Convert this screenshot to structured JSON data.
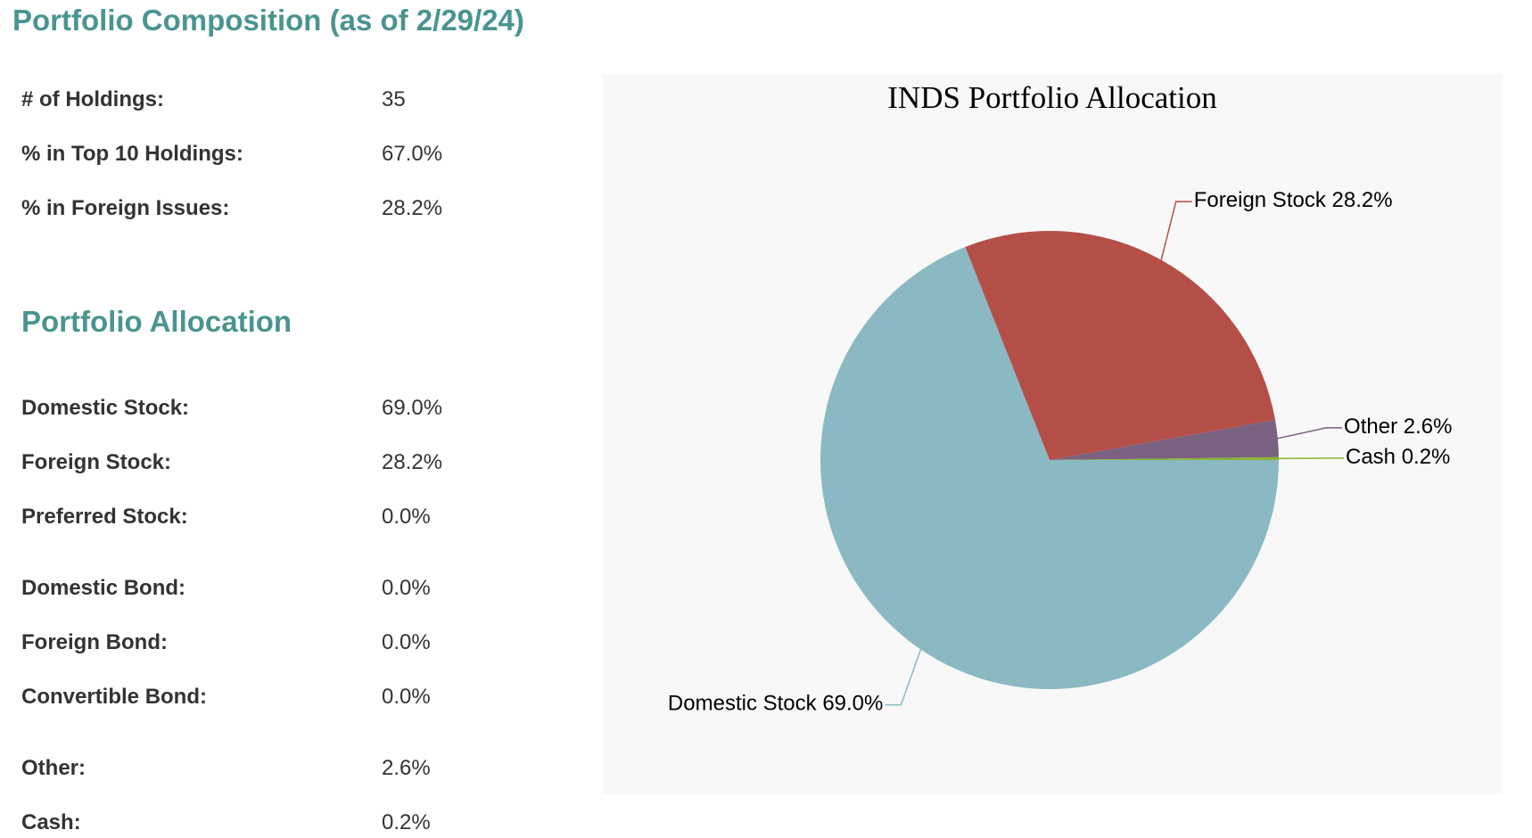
{
  "composition": {
    "title": "Portfolio Composition (as of 2/29/24)",
    "rows": [
      [
        "# of Holdings:",
        "35"
      ],
      [
        "% in Top 10 Holdings:",
        "67.0%"
      ],
      [
        "% in Foreign Issues:",
        "28.2%"
      ]
    ]
  },
  "allocation": {
    "title": "Portfolio Allocation",
    "rows": [
      [
        "Domestic Stock:",
        "69.0%"
      ],
      [
        "Foreign Stock:",
        "28.2%"
      ],
      [
        "Preferred Stock:",
        "0.0%"
      ],
      [
        "Domestic Bond:",
        "0.0%"
      ],
      [
        "Foreign Bond:",
        "0.0%"
      ],
      [
        "Convertible Bond:",
        "0.0%"
      ],
      [
        "Other:",
        "2.6%"
      ],
      [
        "Cash:",
        "0.2%"
      ]
    ]
  },
  "chart_data": {
    "type": "pie",
    "title": "INDS Portfolio Allocation",
    "categories": [
      "Domestic Stock",
      "Foreign Stock",
      "Other",
      "Cash"
    ],
    "values": [
      69.0,
      28.2,
      2.6,
      0.2
    ],
    "value_labels": [
      "69.0%",
      "28.2%",
      "2.6%",
      "0.2%"
    ],
    "colors": [
      "#8ab9c3",
      "#b44f48",
      "#7b6181",
      "#8ab534"
    ]
  }
}
